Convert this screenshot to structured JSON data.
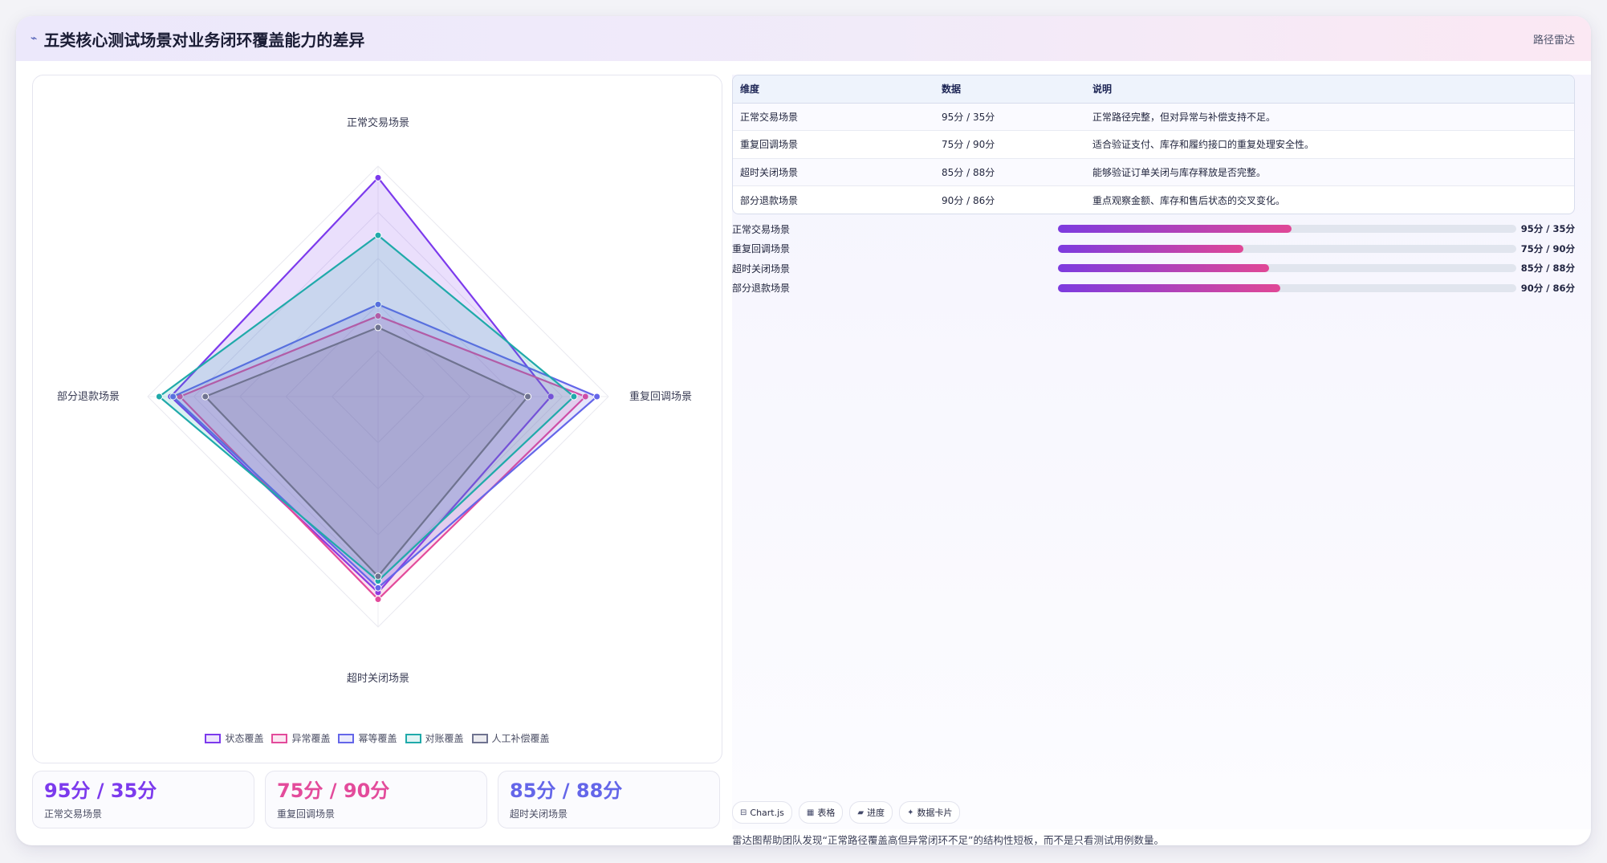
{
  "header": {
    "logo_icon": "⌁",
    "title": "五类核心测试场景对业务闭环覆盖能力的差异",
    "tag": "路径雷达"
  },
  "chart_data": {
    "type": "radar",
    "axes": [
      "正常交易场景",
      "重复回调场景",
      "超时关闭场景",
      "部分退款场景"
    ],
    "range": [
      0,
      100
    ],
    "grid": true,
    "legend_position": "bottom",
    "series": [
      {
        "name": "状态覆盖",
        "color": "#7c3aed",
        "values": [
          95,
          75,
          85,
          90
        ]
      },
      {
        "name": "异常覆盖",
        "color": "#e34b9b",
        "values": [
          35,
          90,
          88,
          86
        ]
      },
      {
        "name": "幂等覆盖",
        "color": "#6466e9",
        "values": [
          40,
          95,
          83,
          89
        ]
      },
      {
        "name": "对账覆盖",
        "color": "#20aaaa",
        "values": [
          70,
          85,
          80,
          95
        ]
      },
      {
        "name": "人工补偿覆盖",
        "color": "#6f7390",
        "values": [
          30,
          65,
          78,
          75
        ]
      }
    ]
  },
  "kpis": [
    {
      "value": "95分 / 35分",
      "label": "正常交易场景",
      "color": "#7c3aed"
    },
    {
      "value": "75分 / 90分",
      "label": "重复回调场景",
      "color": "#e34b9b"
    },
    {
      "value": "85分 / 88分",
      "label": "超时关闭场景",
      "color": "#6466e9"
    }
  ],
  "table": {
    "headers": [
      "维度",
      "数据",
      "说明"
    ],
    "rows": [
      [
        "正常交易场景",
        "95分 / 35分",
        "正常路径完整，但对异常与补偿支持不足。"
      ],
      [
        "重复回调场景",
        "75分 / 90分",
        "适合验证支付、库存和履约接口的重复处理安全性。"
      ],
      [
        "超时关闭场景",
        "85分 / 88分",
        "能够验证订单关闭与库存释放是否完整。"
      ],
      [
        "部分退款场景",
        "90分 / 86分",
        "重点观察金额、库存和售后状态的交叉变化。"
      ]
    ]
  },
  "progress": [
    {
      "label": "正常交易场景",
      "value": "95分 / 35分",
      "fraction": 0.51
    },
    {
      "label": "重复回调场景",
      "value": "75分 / 90分",
      "fraction": 0.405
    },
    {
      "label": "超时关闭场景",
      "value": "85分 / 88分",
      "fraction": 0.46
    },
    {
      "label": "部分退款场景",
      "value": "90分 / 86分",
      "fraction": 0.485
    }
  ],
  "chips": [
    {
      "icon": "⊟",
      "label": "Chart.js"
    },
    {
      "icon": "▦",
      "label": "表格"
    },
    {
      "icon": "▰",
      "label": "进度"
    },
    {
      "icon": "✦",
      "label": "数据卡片"
    }
  ],
  "note": "雷达图帮助团队发现“正常路径覆盖高但异常闭环不足”的结构性短板，而不是只看测试用例数量。"
}
